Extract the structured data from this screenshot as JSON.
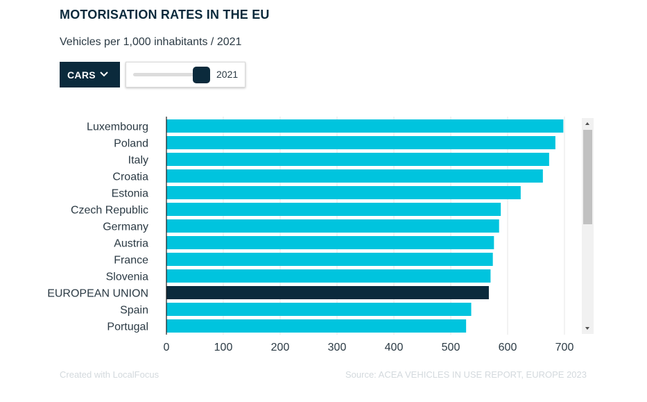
{
  "header": {
    "title": "MOTORISATION RATES IN THE EU",
    "subtitle": "Vehicles per 1,000 inhabitants / 2021"
  },
  "controls": {
    "dropdown_label": "CARS",
    "dropdown_icon": "chevron-down-icon",
    "slider_value": "2021"
  },
  "footer": {
    "credit": "Created with LocalFocus",
    "source": "Source:  ACEA VEHICLES IN USE REPORT, EUROPE 2023"
  },
  "colors": {
    "bar": "#00c4de",
    "highlight": "#0b2a3c",
    "grid": "#e6e6e6",
    "axis": "#1a1a1a"
  },
  "chart_data": {
    "type": "bar",
    "orientation": "horizontal",
    "categories": [
      "Luxembourg",
      "Poland",
      "Italy",
      "Croatia",
      "Estonia",
      "Czech Republic",
      "Germany",
      "Austria",
      "France",
      "Slovenia",
      "EUROPEAN UNION",
      "Spain",
      "Portugal"
    ],
    "values": [
      698,
      684,
      673,
      662,
      623,
      588,
      585,
      576,
      574,
      570,
      567,
      536,
      527
    ],
    "highlight": [
      "EUROPEAN UNION"
    ],
    "xlim": [
      0,
      700
    ],
    "xticks": [
      0,
      100,
      200,
      300,
      400,
      500,
      600,
      700
    ],
    "grid": true
  }
}
